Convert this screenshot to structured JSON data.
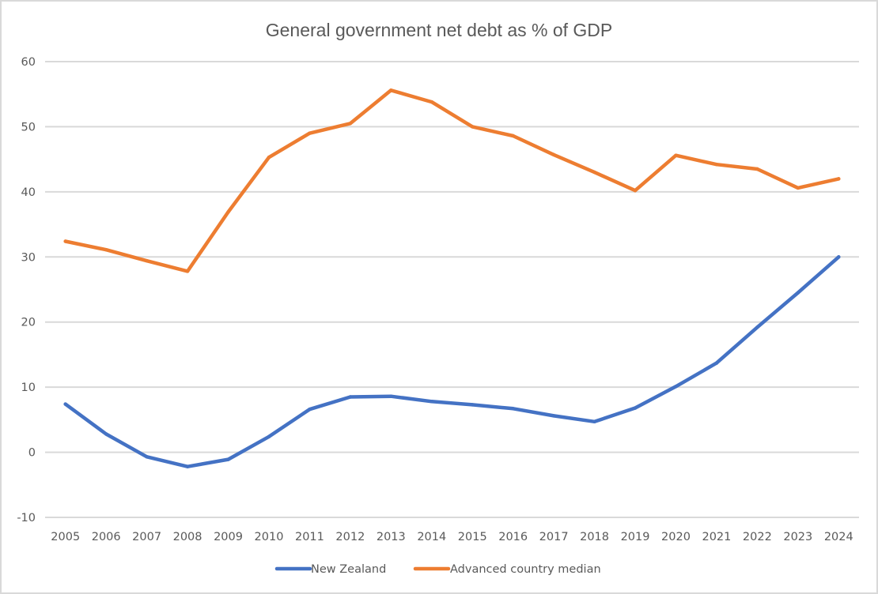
{
  "chart_data": {
    "type": "line",
    "title": "General government net debt as % of GDP",
    "xlabel": "",
    "ylabel": "",
    "ylim": [
      -10,
      60
    ],
    "yticks": [
      60,
      50,
      40,
      30,
      20,
      10,
      0,
      -10
    ],
    "grid": true,
    "legend_position": "bottom",
    "categories": [
      "2005",
      "2006",
      "2007",
      "2008",
      "2009",
      "2010",
      "2011",
      "2012",
      "2013",
      "2014",
      "2015",
      "2016",
      "2017",
      "2018",
      "2019",
      "2020",
      "2021",
      "2022",
      "2023",
      "2024"
    ],
    "series": [
      {
        "name": "New Zealand",
        "color": "#4472C4",
        "values": [
          7.4,
          2.8,
          -0.7,
          -2.2,
          -1.1,
          2.4,
          6.6,
          8.5,
          8.6,
          7.8,
          7.3,
          6.7,
          5.6,
          4.7,
          6.8,
          10.1,
          13.7,
          19.2,
          24.5,
          30.0
        ]
      },
      {
        "name": "Advanced country median",
        "color": "#ED7D31",
        "values": [
          32.4,
          31.1,
          29.4,
          27.8,
          36.9,
          45.3,
          49.0,
          50.5,
          55.6,
          53.8,
          50.0,
          48.6,
          45.7,
          43.0,
          40.2,
          45.6,
          44.2,
          43.5,
          40.6,
          42.0
        ]
      }
    ]
  }
}
